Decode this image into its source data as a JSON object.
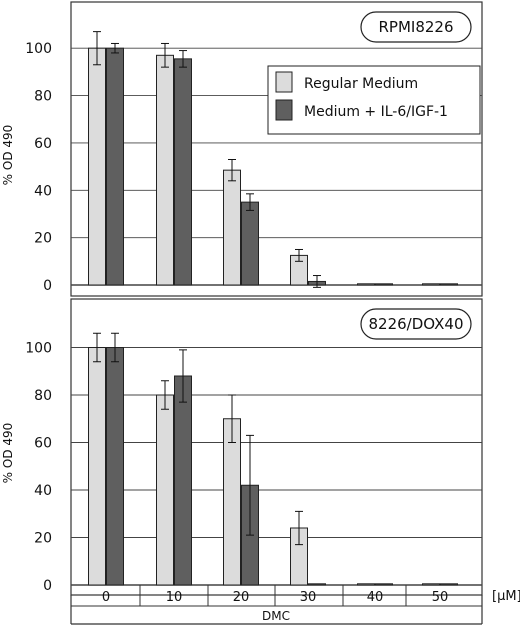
{
  "colors": {
    "regular": "#dcdcdc",
    "il6": "#5f5f5f",
    "frame": "#333333",
    "grid": "#444444"
  },
  "chart_data": [
    {
      "type": "bar",
      "panel_tag": "RPMI8226",
      "ylabel": "% OD 490",
      "ylim": [
        0,
        120
      ],
      "yticks": [
        0,
        20,
        40,
        60,
        80,
        100
      ],
      "grid": true,
      "legend": {
        "placement": "top-right",
        "entries": [
          "Regular Medium",
          "Medium + IL-6/IGF-1"
        ]
      },
      "categories": [
        "0",
        "10",
        "20",
        "30",
        "40",
        "50"
      ],
      "series": [
        {
          "name": "Regular Medium",
          "values": [
            100,
            97,
            48.5,
            12.5,
            0,
            0
          ],
          "errors": [
            7,
            5,
            4.5,
            2.5,
            0,
            0
          ]
        },
        {
          "name": "Medium + IL-6/IGF-1",
          "values": [
            100,
            95.5,
            35,
            1.5,
            0,
            0
          ],
          "errors": [
            2,
            3.5,
            3.5,
            2.5,
            0,
            0
          ]
        }
      ]
    },
    {
      "type": "bar",
      "panel_tag": "8226/DOX40",
      "ylabel": "% OD 490",
      "ylim": [
        0,
        120
      ],
      "yticks": [
        0,
        20,
        40,
        60,
        80,
        100
      ],
      "grid": true,
      "categories": [
        "0",
        "10",
        "20",
        "30",
        "40",
        "50"
      ],
      "xlabel": "DMC",
      "xunit": "[μM]",
      "series": [
        {
          "name": "Regular Medium",
          "values": [
            100,
            80,
            70,
            24,
            0,
            0
          ],
          "errors": [
            6,
            6,
            10,
            7,
            0,
            0
          ]
        },
        {
          "name": "Medium + IL-6/IGF-1",
          "values": [
            100,
            88,
            42,
            0,
            0,
            0
          ],
          "errors": [
            6,
            11,
            21,
            0,
            0,
            0
          ]
        }
      ]
    }
  ]
}
